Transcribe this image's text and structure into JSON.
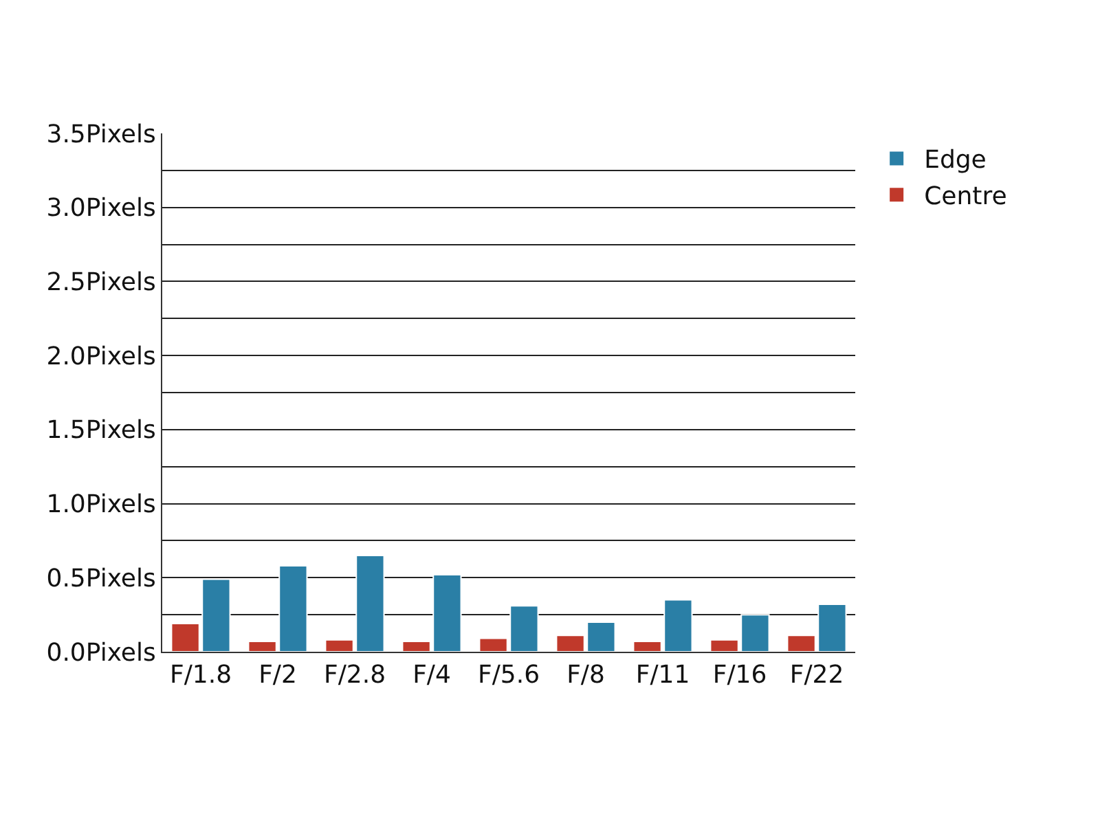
{
  "chart_data": {
    "type": "bar",
    "categories": [
      "F/1.8",
      "F/2",
      "F/2.8",
      "F/4",
      "F/5.6",
      "F/8",
      "F/11",
      "F/16",
      "F/22"
    ],
    "series": [
      {
        "name": "Centre",
        "color": "#c0392b",
        "values": [
          0.19,
          0.07,
          0.08,
          0.07,
          0.09,
          0.11,
          0.07,
          0.08,
          0.11
        ]
      },
      {
        "name": "Edge",
        "color": "#2a7fa6",
        "values": [
          0.49,
          0.58,
          0.65,
          0.52,
          0.31,
          0.2,
          0.35,
          0.25,
          0.32
        ]
      }
    ],
    "ylim": [
      0,
      3.5
    ],
    "yticks": [
      {
        "value": 0,
        "label": "0.0Pixels"
      },
      {
        "value": 0.25,
        "label": null
      },
      {
        "value": 0.5,
        "label": "0.5Pixels"
      },
      {
        "value": 0.75,
        "label": null
      },
      {
        "value": 1,
        "label": "1.0Pixels"
      },
      {
        "value": 1.25,
        "label": null
      },
      {
        "value": 1.5,
        "label": "1.5Pixels"
      },
      {
        "value": 1.75,
        "label": null
      },
      {
        "value": 2,
        "label": "2.0Pixels"
      },
      {
        "value": 2.25,
        "label": null
      },
      {
        "value": 2.5,
        "label": "2.5Pixels"
      },
      {
        "value": 2.75,
        "label": null
      },
      {
        "value": 3,
        "label": "3.0Pixels"
      },
      {
        "value": 3.25,
        "label": null
      },
      {
        "value": 3.5,
        "label": "3.5Pixels"
      }
    ],
    "grid": "y",
    "legend": "top right"
  }
}
